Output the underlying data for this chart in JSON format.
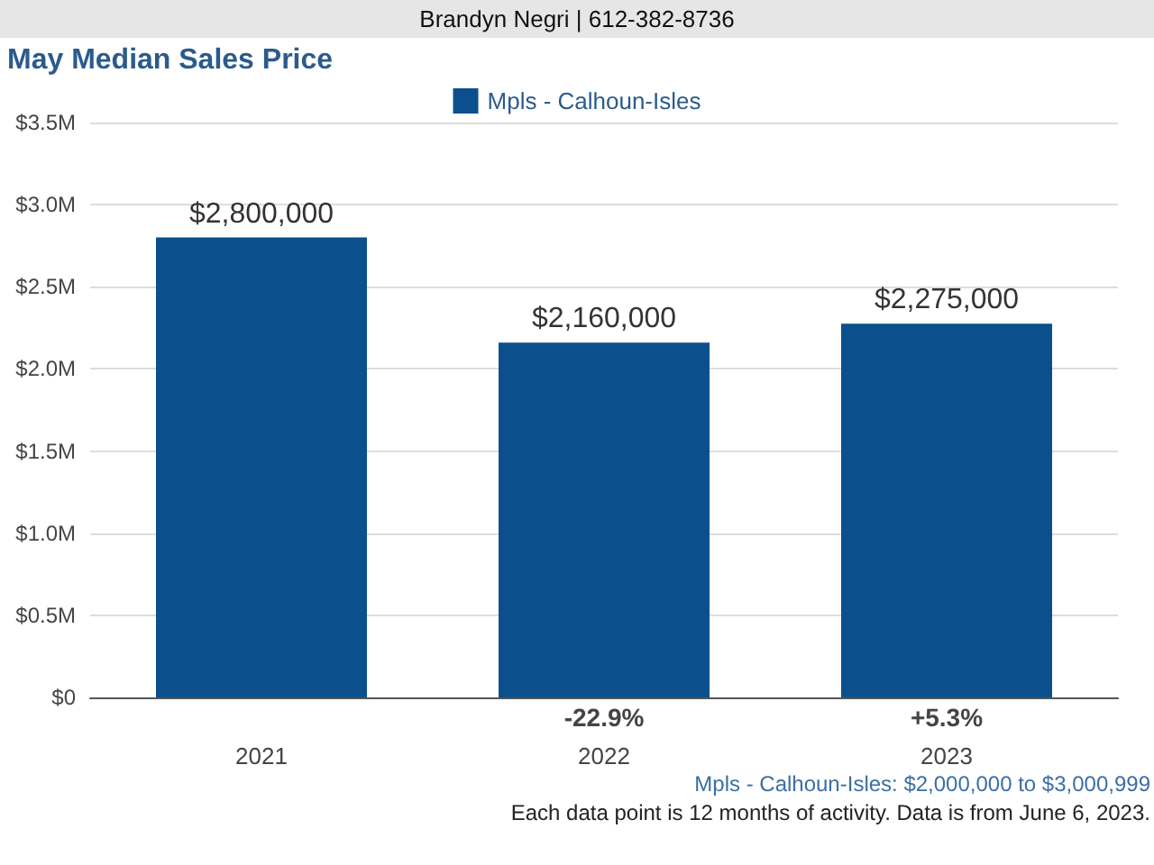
{
  "chart_data": {
    "type": "bar",
    "title": "May Median Sales Price",
    "categories": [
      "2021",
      "2022",
      "2023"
    ],
    "series": [
      {
        "name": "Mpls - Calhoun-Isles",
        "color": "#0b4f8c",
        "values": [
          2800000,
          2160000,
          2275000
        ],
        "value_labels": [
          "$2,800,000",
          "$2,160,000",
          "$2,275,000"
        ]
      }
    ],
    "ylim": [
      0,
      3500000
    ],
    "yticks": [
      {
        "value": 0,
        "label": "$0"
      },
      {
        "value": 500000,
        "label": "$0.5M"
      },
      {
        "value": 1000000,
        "label": "$1.0M"
      },
      {
        "value": 1500000,
        "label": "$1.5M"
      },
      {
        "value": 2000000,
        "label": "$2.0M"
      },
      {
        "value": 2500000,
        "label": "$2.5M"
      },
      {
        "value": 3000000,
        "label": "$3.0M"
      },
      {
        "value": 3500000,
        "label": "$3.5M"
      }
    ],
    "grid": "y",
    "legend": "top",
    "annotations": [
      "Brandyn Negri | 612-382-8736",
      "-22.9%",
      "+5.3%",
      "Mpls - Calhoun-Isles: $2,000,000 to $3,000,999",
      "Each data point is 12 months of activity. Data is from June 6, 2023."
    ]
  }
}
